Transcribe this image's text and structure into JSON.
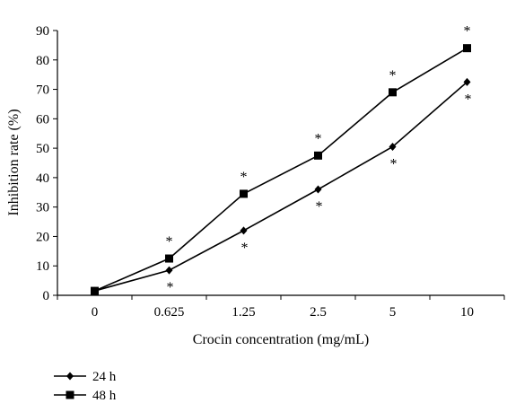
{
  "chart_data": {
    "type": "line",
    "title": "",
    "xlabel": "Crocin concentration (mg/mL)",
    "ylabel": "Inhibition rate (%)",
    "ylim": [
      0,
      90
    ],
    "yticks": [
      "0",
      "10",
      "20",
      "30",
      "40",
      "50",
      "60",
      "70",
      "80",
      "90"
    ],
    "categories": [
      "0",
      "0.625",
      "1.25",
      "2.5",
      "5",
      "10"
    ],
    "grid": false,
    "legend_position": "bottom-left",
    "series": [
      {
        "name": "24 h",
        "marker": "diamond",
        "color": "#000000",
        "values": [
          1.5,
          8.5,
          22,
          36,
          50.5,
          72.5
        ],
        "significance": [
          "",
          "*",
          "*",
          "*",
          "*",
          "*"
        ]
      },
      {
        "name": "48 h",
        "marker": "square",
        "color": "#000000",
        "values": [
          1.5,
          12.5,
          34.5,
          47.5,
          69,
          84
        ],
        "significance": [
          "",
          "*",
          "*",
          "*",
          "*",
          "*"
        ]
      }
    ]
  }
}
